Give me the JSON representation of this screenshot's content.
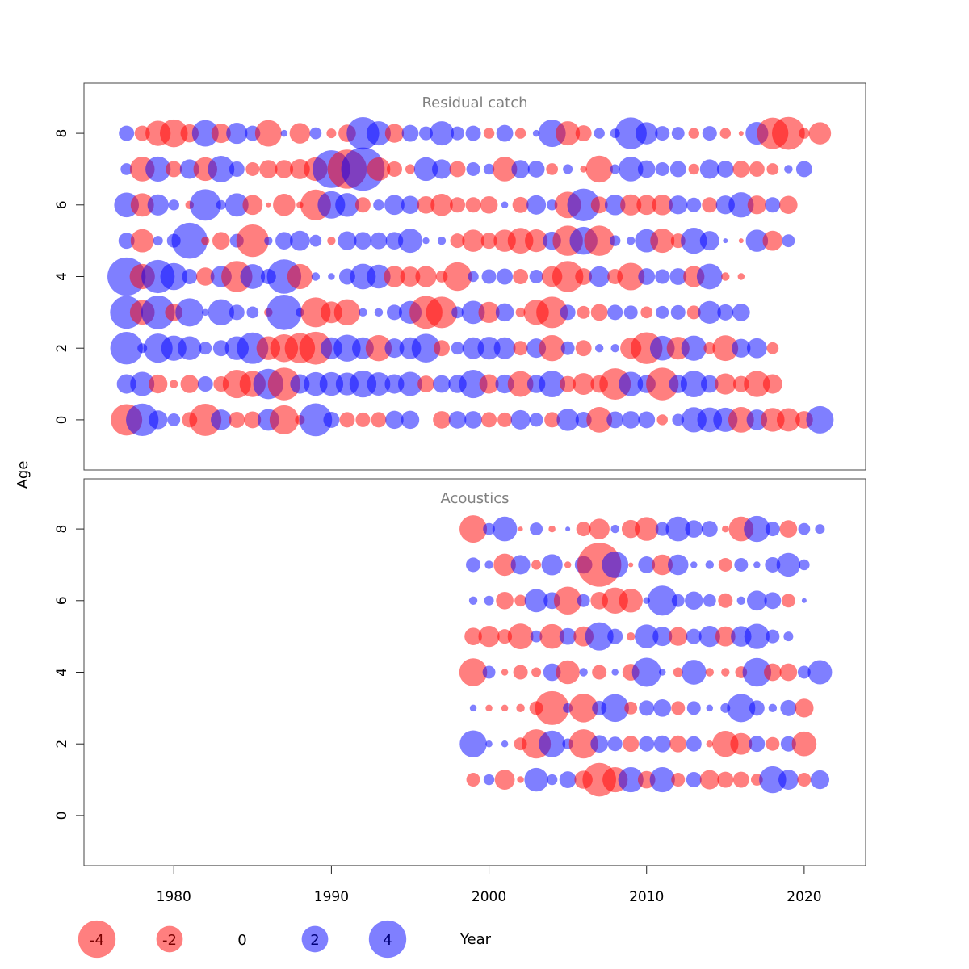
{
  "chart_data": {
    "type": "scatter",
    "subtype": "residual-bubble",
    "xlabel": "Year",
    "ylabel": "Age",
    "xlim": [
      1974.3,
      2023.9
    ],
    "ylim": [
      -1.4,
      9.4
    ],
    "x_ticks": [
      "1980",
      "1990",
      "2000",
      "2010",
      "2020"
    ],
    "y_ticks": [
      "0",
      "2",
      "4",
      "6",
      "8"
    ],
    "colors": {
      "positive": "#0000ff",
      "negative": "#ff0000",
      "opacity": 0.5
    },
    "legend": [
      {
        "label": "-4",
        "value": -4
      },
      {
        "label": "-2",
        "value": -2
      },
      {
        "label": "0",
        "value": 0
      },
      {
        "label": "2",
        "value": 2
      },
      {
        "label": "4",
        "value": 4
      }
    ],
    "panels": [
      {
        "title": "Residual catch",
        "year_start": 1977,
        "ages": [
          0,
          1,
          2,
          3,
          4,
          5,
          6,
          7,
          8
        ],
        "residuals": [
          [
            -4.2,
            4.5,
            1.5,
            0.7,
            -1.0,
            -4.4,
            1.8,
            -1.1,
            -1.2,
            2.0,
            -3.6,
            -0.4,
            4.6,
            1.1,
            -1.0,
            -0.9,
            -1.0,
            1.4,
            1.4,
            0.0,
            -1.3,
            1.3,
            1.3,
            -1.0,
            -0.9,
            1.6,
            0.8,
            -1.0,
            2.1,
            1.1,
            -2.8,
            1.2,
            1.3,
            1.2,
            -0.5,
            0.6,
            2.7,
            2.6,
            2.5,
            -2.8,
            1.8,
            -2.4,
            -2.3,
            -1.3,
            3.2
          ],
          [
            1.6,
            2.5,
            -1.5,
            -0.3,
            -1.4,
            1.0,
            -1.0,
            -3.4,
            -2.9,
            3.9,
            -4.5,
            1.6,
            2.4,
            2.4,
            2.2,
            3.1,
            2.3,
            1.6,
            2.5,
            -1.2,
            1.3,
            1.4,
            3.4,
            -1.6,
            1.5,
            -2.8,
            1.4,
            3.0,
            -1.1,
            -2.0,
            -1.3,
            -4.2,
            2.5,
            1.4,
            -4.5,
            1.4,
            3.0,
            1.3,
            -1.9,
            -1.1,
            -2.9,
            -1.6
          ],
          [
            4.5,
            0.4,
            3.6,
            2.7,
            2.4,
            0.7,
            1.1,
            2.4,
            4.2,
            -2.4,
            -3.3,
            -3.9,
            -4.6,
            2.0,
            3.1,
            2.0,
            -2.9,
            1.6,
            2.0,
            3.5,
            -1.1,
            0.7,
            2.0,
            2.2,
            2.0,
            -0.9,
            1.6,
            -2.9,
            0.8,
            -1.1,
            0.3,
            0.3,
            -1.9,
            -4.3,
            2.6,
            -2.2,
            2.7,
            -0.6,
            -2.8,
            1.5,
            1.7,
            -0.6
          ],
          [
            4.6,
            -2.6,
            4.8,
            -1.3,
            3.4,
            0.2,
            2.9,
            1.0,
            0.6,
            -0.3,
            5.3,
            0.3,
            -3.8,
            -2.0,
            -2.9,
            0.3,
            0.3,
            1.0,
            2.2,
            -4.6,
            -4.2,
            0.6,
            2.3,
            -1.9,
            1.4,
            -0.4,
            -2.7,
            -4.2,
            1.0,
            -0.7,
            -1.2,
            1.0,
            0.8,
            -0.6,
            0.7,
            0.9,
            -0.8,
            2.2,
            1.1,
            1.3
          ],
          [
            6.2,
            -2.7,
            4.7,
            3.1,
            1.0,
            -1.4,
            1.9,
            -4.1,
            2.6,
            1.0,
            5.0,
            -2.7,
            0.3,
            0.2,
            1.1,
            2.8,
            2.4,
            -1.9,
            -1.7,
            -1.9,
            -0.6,
            -3.5,
            0.5,
            0.9,
            1.1,
            -1.0,
            0.8,
            -1.8,
            -4.1,
            -1.2,
            1.8,
            -1.0,
            -3.2,
            1.2,
            0.9,
            1.2,
            -1.9,
            2.8,
            -0.3,
            -0.2
          ],
          [
            1.1,
            -2.3,
            0.4,
            0.8,
            5.5,
            -0.3,
            -1.3,
            0.8,
            -4.5,
            0.3,
            1.3,
            1.7,
            0.6,
            -0.3,
            1.5,
            1.3,
            1.2,
            1.3,
            2.5,
            0.2,
            0.3,
            -0.9,
            -2.1,
            -1.1,
            -2.1,
            -2.8,
            -2.2,
            1.4,
            -3.9,
            3.3,
            -3.9,
            0.5,
            0.3,
            2.3,
            -2.5,
            -0.9,
            2.9,
            1.6,
            0.1,
            -0.1,
            2.1,
            -1.7,
            0.7
          ],
          [
            2.6,
            -2.3,
            1.9,
            0.5,
            -0.3,
            4.2,
            0.4,
            2.3,
            -1.7,
            -0.1,
            -2.1,
            -0.2,
            -4.0,
            3.2,
            2.4,
            -1.0,
            0.5,
            1.7,
            1.4,
            -1.3,
            -2.1,
            -1.0,
            -1.0,
            -1.3,
            0.2,
            -1.1,
            1.6,
            0.5,
            -3.0,
            4.5,
            -1.2,
            1.8,
            -1.9,
            -1.7,
            -1.8,
            1.5,
            0.9,
            -1.0,
            1.5,
            2.7,
            -1.5,
            1.0,
            -1.4
          ],
          [
            0.6,
            -2.6,
            2.7,
            -1.1,
            1.6,
            -2.4,
            3.0,
            1.0,
            -0.8,
            -1.4,
            -1.4,
            -1.7,
            -2.4,
            6.0,
            -6.5,
            8.0,
            -2.3,
            -1.0,
            -0.4,
            2.4,
            1.6,
            -1.1,
            0.8,
            0.5,
            -2.6,
            1.4,
            1.2,
            -0.6,
            0.4,
            -0.2,
            -3.1,
            0.4,
            2.6,
            1.3,
            0.8,
            1.1,
            -0.5,
            1.6,
            1.2,
            -1.2,
            -1.0,
            -0.6,
            0.3,
            1.1
          ],
          [
            1.0,
            -1.0,
            -2.7,
            -3.3,
            -1.4,
            3.0,
            -1.6,
            1.9,
            1.0,
            -3.0,
            0.2,
            -1.8,
            0.6,
            -0.4,
            -1.3,
            4.5,
            2.5,
            -1.5,
            1.2,
            0.8,
            2.5,
            0.8,
            1.0,
            -0.5,
            1.2,
            -0.5,
            0.2,
            3.2,
            -2.5,
            -1.1,
            0.5,
            0.4,
            4.3,
            2.1,
            0.9,
            0.7,
            -0.5,
            0.9,
            -0.5,
            -0.1,
            2.2,
            -4.2,
            -4.6,
            -0.5,
            -2.1
          ]
        ]
      },
      {
        "title": "Acoustics",
        "year_start": 1999,
        "ages": [
          1,
          2,
          3,
          4,
          5,
          6,
          7,
          8
        ],
        "residuals": [
          [
            -0.8,
            0.5,
            -1.7,
            -0.2,
            2.4,
            0.5,
            1.2,
            -1.4,
            -4.8,
            -2.7,
            2.7,
            -1.3,
            2.7,
            -0.8,
            1.0,
            -1.6,
            -1.1,
            -1.1,
            -0.6,
            3.1,
            1.7,
            -0.8,
            1.5
          ],
          [
            3.1,
            0.2,
            0.2,
            -0.7,
            -3.6,
            3.0,
            0.5,
            -3.6,
            1.3,
            0.9,
            -1.1,
            1.0,
            1.2,
            -1.2,
            1.0,
            -0.2,
            -2.9,
            -2.0,
            1.1,
            -0.8,
            1.0,
            -2.6
          ],
          [
            0.2,
            -0.2,
            -0.2,
            -0.3,
            -0.8,
            -4.9,
            0.4,
            -3.5,
            0.9,
            3.3,
            -0.7,
            1.0,
            1.3,
            -0.8,
            0.8,
            0.2,
            0.4,
            3.4,
            1.0,
            0.3,
            1.1,
            -1.5
          ],
          [
            -3.3,
            0.7,
            -0.2,
            -0.9,
            -0.4,
            1.3,
            -2.4,
            0.3,
            -0.9,
            0.2,
            -1.2,
            3.6,
            0.2,
            -0.4,
            2.6,
            -0.3,
            -0.3,
            -0.6,
            3.5,
            -1.3,
            -1.3,
            0.7,
            2.5
          ],
          [
            -1.3,
            -1.9,
            -0.9,
            -2.8,
            0.6,
            -2.6,
            1.2,
            -1.7,
            3.4,
            1.0,
            -0.3,
            2.4,
            1.6,
            -1.5,
            1.0,
            1.9,
            -1.7,
            1.8,
            2.7,
            0.8,
            0.4
          ],
          [
            0.3,
            0.4,
            -1.3,
            -0.6,
            2.3,
            1.2,
            -3.3,
            0.7,
            -1.3,
            -2.9,
            -2.4,
            0.2,
            3.8,
            0.7,
            1.4,
            0.7,
            -0.9,
            0.3,
            1.7,
            1.2,
            -0.8,
            0.1
          ],
          [
            0.9,
            0.3,
            -2.1,
            1.6,
            -0.4,
            1.9,
            -0.2,
            1.3,
            -8.2,
            3.0,
            -0.1,
            1.2,
            -1.8,
            1.8,
            0.2,
            0.3,
            -0.8,
            0.8,
            0.2,
            1.0,
            2.4,
            0.5
          ],
          [
            -3.2,
            0.6,
            2.6,
            -0.1,
            0.7,
            -0.2,
            0.1,
            -0.9,
            -1.8,
            0.3,
            -1.4,
            -2.4,
            0.8,
            2.6,
            1.3,
            1.1,
            -0.2,
            -2.6,
            2.9,
            0.9,
            -1.3,
            0.6,
            0.4
          ]
        ]
      }
    ]
  }
}
